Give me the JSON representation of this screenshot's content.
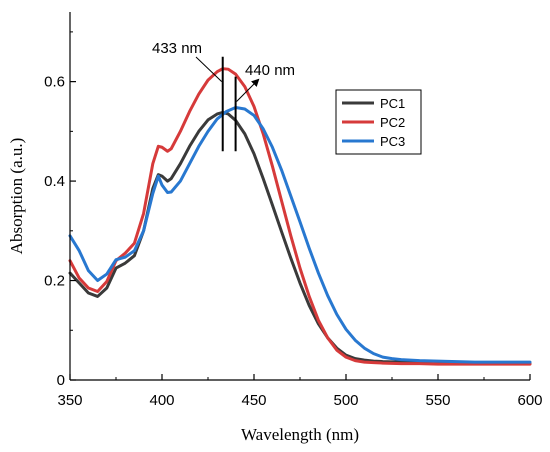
{
  "chart_data": {
    "type": "line",
    "xlabel": "Wavelength (nm)",
    "ylabel": "Absorption (a.u.)",
    "xlim": [
      350,
      600
    ],
    "ylim": [
      0,
      0.74
    ],
    "xticks": [
      350,
      400,
      450,
      500,
      550,
      600
    ],
    "yticks": [
      0,
      0.2,
      0.4,
      0.6
    ],
    "ytick_labels": [
      "0",
      "0.2",
      "0.4",
      "0.6"
    ],
    "grid": false,
    "legend_placement": "right",
    "series": [
      {
        "name": "PC1",
        "color": "#3a3a3a",
        "x": [
          350,
          355,
          360,
          365,
          370,
          375,
          380,
          385,
          390,
          395,
          398,
          400,
          403,
          405,
          410,
          415,
          420,
          425,
          430,
          433,
          436,
          440,
          445,
          450,
          455,
          460,
          465,
          470,
          475,
          480,
          485,
          490,
          495,
          500,
          505,
          510,
          515,
          520,
          530,
          540,
          550,
          560,
          570,
          580,
          590,
          600
        ],
        "y": [
          0.215,
          0.195,
          0.175,
          0.168,
          0.185,
          0.225,
          0.235,
          0.25,
          0.3,
          0.385,
          0.413,
          0.41,
          0.4,
          0.405,
          0.435,
          0.47,
          0.5,
          0.523,
          0.535,
          0.538,
          0.535,
          0.522,
          0.495,
          0.455,
          0.405,
          0.352,
          0.298,
          0.245,
          0.195,
          0.15,
          0.113,
          0.085,
          0.064,
          0.05,
          0.043,
          0.04,
          0.038,
          0.037,
          0.036,
          0.035,
          0.034,
          0.033,
          0.033,
          0.033,
          0.033,
          0.033
        ]
      },
      {
        "name": "PC2",
        "color": "#d63a3a",
        "x": [
          350,
          355,
          360,
          365,
          370,
          375,
          380,
          385,
          390,
          395,
          398,
          400,
          403,
          405,
          410,
          415,
          420,
          425,
          430,
          433,
          436,
          440,
          445,
          450,
          455,
          460,
          465,
          470,
          475,
          480,
          485,
          490,
          495,
          500,
          505,
          510,
          515,
          520,
          530,
          540,
          550,
          560,
          570,
          580,
          590,
          600
        ],
        "y": [
          0.24,
          0.205,
          0.185,
          0.178,
          0.198,
          0.24,
          0.255,
          0.275,
          0.335,
          0.435,
          0.47,
          0.468,
          0.46,
          0.465,
          0.5,
          0.54,
          0.575,
          0.603,
          0.62,
          0.626,
          0.625,
          0.615,
          0.59,
          0.55,
          0.495,
          0.43,
          0.36,
          0.29,
          0.225,
          0.168,
          0.12,
          0.085,
          0.06,
          0.046,
          0.039,
          0.036,
          0.035,
          0.034,
          0.033,
          0.033,
          0.032,
          0.032,
          0.032,
          0.032,
          0.032,
          0.032
        ]
      },
      {
        "name": "PC3",
        "color": "#2878d0",
        "x": [
          350,
          355,
          360,
          365,
          370,
          375,
          380,
          385,
          390,
          395,
          398,
          400,
          403,
          405,
          410,
          415,
          420,
          425,
          430,
          435,
          440,
          445,
          450,
          455,
          460,
          465,
          470,
          475,
          480,
          485,
          490,
          495,
          500,
          505,
          510,
          515,
          520,
          525,
          530,
          540,
          550,
          560,
          570,
          580,
          590,
          600
        ],
        "y": [
          0.29,
          0.26,
          0.22,
          0.2,
          0.213,
          0.242,
          0.247,
          0.26,
          0.3,
          0.375,
          0.41,
          0.392,
          0.377,
          0.378,
          0.4,
          0.435,
          0.47,
          0.5,
          0.525,
          0.54,
          0.548,
          0.545,
          0.532,
          0.505,
          0.468,
          0.422,
          0.37,
          0.318,
          0.265,
          0.215,
          0.17,
          0.132,
          0.102,
          0.08,
          0.064,
          0.053,
          0.046,
          0.043,
          0.041,
          0.039,
          0.038,
          0.037,
          0.036,
          0.036,
          0.036,
          0.036
        ]
      }
    ],
    "annotations": [
      {
        "label": "433 nm",
        "x": 433,
        "y_bottom": 0.46,
        "y_top": 0.65
      },
      {
        "label": "440 nm",
        "x": 440,
        "y_bottom": 0.46,
        "y_top": 0.61
      }
    ]
  }
}
